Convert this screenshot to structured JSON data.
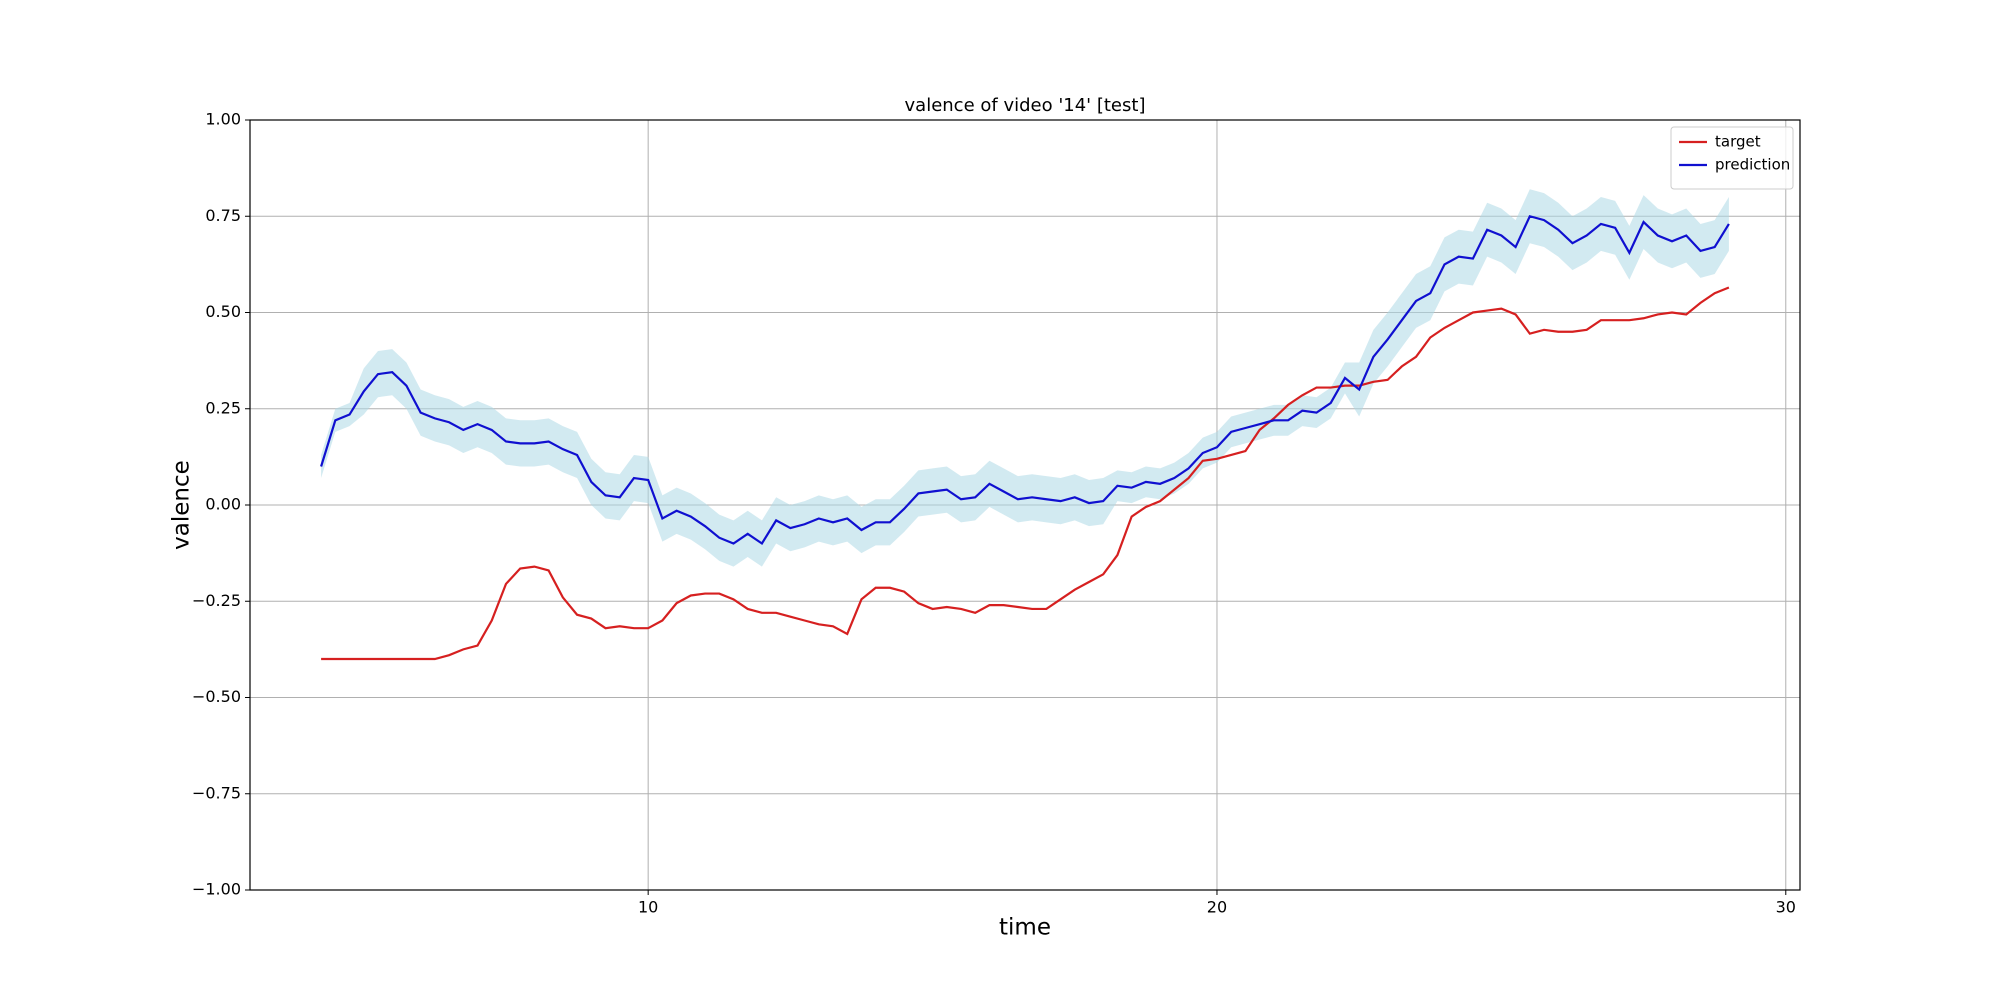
{
  "chart_data": {
    "type": "line",
    "title": "valence of video '14' [test]",
    "x_label": "time",
    "y_label": "valence",
    "x": [
      4.25,
      4.5,
      4.75,
      5,
      5.25,
      5.5,
      5.75,
      6,
      6.25,
      6.5,
      6.75,
      7,
      7.25,
      7.5,
      7.75,
      8,
      8.25,
      8.5,
      8.75,
      9,
      9.25,
      9.5,
      9.75,
      10,
      10.25,
      10.5,
      10.75,
      11,
      11.25,
      11.5,
      11.75,
      12,
      12.25,
      12.5,
      12.75,
      13,
      13.25,
      13.5,
      13.75,
      14,
      14.25,
      14.5,
      14.75,
      15,
      15.25,
      15.5,
      15.75,
      16,
      16.25,
      16.5,
      16.75,
      17,
      17.25,
      17.5,
      17.75,
      18,
      18.25,
      18.5,
      18.75,
      19,
      19.25,
      19.5,
      19.75,
      20,
      20.25,
      20.5,
      20.75,
      21,
      21.25,
      21.5,
      21.75,
      22,
      22.25,
      22.5,
      22.75,
      23,
      23.25,
      23.5,
      23.75,
      24,
      24.25,
      24.5,
      24.75,
      25,
      25.25,
      25.5,
      25.75,
      26,
      26.25,
      26.5,
      26.75,
      27,
      27.25,
      27.5,
      27.75,
      28,
      28.25,
      28.5,
      28.75,
      29
    ],
    "series": [
      {
        "name": "target",
        "color": "#d62020",
        "values": [
          -0.4,
          -0.4,
          -0.4,
          -0.4,
          -0.4,
          -0.4,
          -0.4,
          -0.4,
          -0.4,
          -0.39,
          -0.375,
          -0.365,
          -0.3,
          -0.205,
          -0.165,
          -0.16,
          -0.17,
          -0.24,
          -0.285,
          -0.295,
          -0.32,
          -0.315,
          -0.32,
          -0.32,
          -0.3,
          -0.255,
          -0.235,
          -0.23,
          -0.23,
          -0.245,
          -0.27,
          -0.28,
          -0.28,
          -0.29,
          -0.3,
          -0.31,
          -0.315,
          -0.335,
          -0.245,
          -0.215,
          -0.215,
          -0.225,
          -0.255,
          -0.27,
          -0.265,
          -0.27,
          -0.28,
          -0.26,
          -0.26,
          -0.265,
          -0.27,
          -0.27,
          -0.245,
          -0.22,
          -0.2,
          -0.18,
          -0.13,
          -0.03,
          -0.005,
          0.01,
          0.04,
          0.07,
          0.115,
          0.12,
          0.13,
          0.14,
          0.195,
          0.225,
          0.26,
          0.285,
          0.305,
          0.305,
          0.31,
          0.31,
          0.32,
          0.325,
          0.36,
          0.385,
          0.435,
          0.46,
          0.48,
          0.5,
          0.505,
          0.51,
          0.495,
          0.445,
          0.455,
          0.45,
          0.45,
          0.455,
          0.48,
          0.48,
          0.48,
          0.485,
          0.495,
          0.5,
          0.495,
          0.525,
          0.55,
          0.565
        ]
      },
      {
        "name": "prediction",
        "color": "#1010d0",
        "values": [
          0.1,
          0.22,
          0.235,
          0.295,
          0.34,
          0.345,
          0.31,
          0.24,
          0.225,
          0.215,
          0.195,
          0.21,
          0.195,
          0.165,
          0.16,
          0.16,
          0.165,
          0.145,
          0.13,
          0.06,
          0.025,
          0.02,
          0.07,
          0.065,
          -0.035,
          -0.015,
          -0.03,
          -0.055,
          -0.085,
          -0.1,
          -0.075,
          -0.1,
          -0.04,
          -0.06,
          -0.05,
          -0.035,
          -0.045,
          -0.035,
          -0.065,
          -0.045,
          -0.045,
          -0.01,
          0.03,
          0.035,
          0.04,
          0.015,
          0.02,
          0.055,
          0.035,
          0.015,
          0.02,
          0.015,
          0.01,
          0.02,
          0.005,
          0.01,
          0.05,
          0.045,
          0.06,
          0.055,
          0.07,
          0.095,
          0.135,
          0.15,
          0.19,
          0.2,
          0.21,
          0.22,
          0.22,
          0.245,
          0.24,
          0.265,
          0.33,
          0.3,
          0.385,
          0.43,
          0.48,
          0.53,
          0.55,
          0.625,
          0.645,
          0.64,
          0.715,
          0.7,
          0.67,
          0.75,
          0.74,
          0.715,
          0.68,
          0.7,
          0.73,
          0.72,
          0.655,
          0.735,
          0.7,
          0.685,
          0.7,
          0.66,
          0.67,
          0.73
        ]
      }
    ],
    "band": {
      "color": "#add8e6",
      "lower": [
        0.07,
        0.19,
        0.205,
        0.235,
        0.28,
        0.285,
        0.25,
        0.18,
        0.165,
        0.155,
        0.135,
        0.15,
        0.135,
        0.105,
        0.1,
        0.1,
        0.105,
        0.085,
        0.07,
        0.0,
        -0.035,
        -0.04,
        0.01,
        0.005,
        -0.095,
        -0.075,
        -0.09,
        -0.115,
        -0.145,
        -0.16,
        -0.135,
        -0.16,
        -0.1,
        -0.12,
        -0.11,
        -0.095,
        -0.105,
        -0.095,
        -0.125,
        -0.105,
        -0.105,
        -0.07,
        -0.03,
        -0.025,
        -0.02,
        -0.045,
        -0.04,
        -0.005,
        -0.025,
        -0.045,
        -0.04,
        -0.045,
        -0.05,
        -0.04,
        -0.055,
        -0.05,
        0.01,
        0.005,
        0.02,
        0.015,
        0.03,
        0.055,
        0.095,
        0.11,
        0.15,
        0.16,
        0.17,
        0.18,
        0.18,
        0.205,
        0.2,
        0.225,
        0.29,
        0.23,
        0.315,
        0.36,
        0.41,
        0.46,
        0.48,
        0.555,
        0.575,
        0.57,
        0.645,
        0.63,
        0.6,
        0.68,
        0.67,
        0.645,
        0.61,
        0.63,
        0.66,
        0.65,
        0.585,
        0.665,
        0.63,
        0.615,
        0.63,
        0.59,
        0.6,
        0.66
      ],
      "upper": [
        0.13,
        0.25,
        0.265,
        0.355,
        0.4,
        0.405,
        0.37,
        0.3,
        0.285,
        0.275,
        0.255,
        0.27,
        0.255,
        0.225,
        0.22,
        0.22,
        0.225,
        0.205,
        0.19,
        0.12,
        0.085,
        0.08,
        0.13,
        0.125,
        0.025,
        0.045,
        0.03,
        0.005,
        -0.025,
        -0.04,
        -0.015,
        -0.04,
        0.02,
        0.0,
        0.01,
        0.025,
        0.015,
        0.025,
        -0.005,
        0.015,
        0.015,
        0.05,
        0.09,
        0.095,
        0.1,
        0.075,
        0.08,
        0.115,
        0.095,
        0.075,
        0.08,
        0.075,
        0.07,
        0.08,
        0.065,
        0.07,
        0.09,
        0.085,
        0.1,
        0.095,
        0.11,
        0.135,
        0.175,
        0.19,
        0.23,
        0.24,
        0.25,
        0.26,
        0.26,
        0.285,
        0.28,
        0.305,
        0.37,
        0.37,
        0.455,
        0.5,
        0.55,
        0.6,
        0.62,
        0.695,
        0.715,
        0.71,
        0.785,
        0.77,
        0.74,
        0.82,
        0.81,
        0.785,
        0.75,
        0.77,
        0.8,
        0.79,
        0.725,
        0.805,
        0.77,
        0.755,
        0.77,
        0.73,
        0.74,
        0.8
      ]
    },
    "xlim": [
      3,
      30.25
    ],
    "ylim": [
      -1,
      1
    ],
    "xticks": [
      10,
      20,
      30
    ],
    "yticks": [
      {
        "value": -1,
        "label": "−1.00"
      },
      {
        "value": -0.75,
        "label": "−0.75"
      },
      {
        "value": -0.5,
        "label": "−0.50"
      },
      {
        "value": -0.25,
        "label": "−0.25"
      },
      {
        "value": 0,
        "label": "0.00"
      },
      {
        "value": 0.25,
        "label": "0.25"
      },
      {
        "value": 0.5,
        "label": "0.50"
      },
      {
        "value": 0.75,
        "label": "0.75"
      },
      {
        "value": 1,
        "label": "1.00"
      }
    ],
    "grid": true,
    "legend": "upper-right"
  }
}
